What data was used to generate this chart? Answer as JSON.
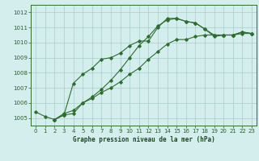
{
  "title": "Graphe pression niveau de la mer (hPa)",
  "background_color": "#d4eeee",
  "grid_color": "#aacccc",
  "line_color": "#2d6e2d",
  "xlim": [
    -0.5,
    23.5
  ],
  "ylim": [
    1004.5,
    1012.5
  ],
  "xticks": [
    0,
    1,
    2,
    3,
    4,
    5,
    6,
    7,
    8,
    9,
    10,
    11,
    12,
    13,
    14,
    15,
    16,
    17,
    18,
    19,
    20,
    21,
    22,
    23
  ],
  "yticks": [
    1005,
    1006,
    1007,
    1008,
    1009,
    1010,
    1011,
    1012
  ],
  "series": [
    {
      "x": [
        0,
        1,
        2,
        3,
        4,
        5,
        6,
        7,
        8,
        9,
        10,
        11,
        12,
        13,
        14,
        15,
        16,
        17,
        18,
        19,
        20,
        21,
        22,
        23
      ],
      "y": [
        1005.4,
        1005.1,
        1004.9,
        1005.2,
        1007.3,
        1007.9,
        1008.3,
        1008.9,
        1009.0,
        1009.3,
        1009.8,
        1010.1,
        1010.1,
        1011.0,
        1011.6,
        1011.6,
        1011.4,
        1011.3,
        1010.9,
        1010.4,
        1010.5,
        1010.5,
        1010.7,
        1010.6
      ]
    },
    {
      "x": [
        2,
        3,
        4,
        5,
        6,
        7,
        8,
        9,
        10,
        11,
        12,
        13,
        14,
        15,
        16,
        17,
        18,
        19,
        20,
        21,
        22,
        23
      ],
      "y": [
        1004.9,
        1005.2,
        1005.3,
        1006.0,
        1006.4,
        1006.9,
        1007.5,
        1008.2,
        1009.0,
        1009.8,
        1010.4,
        1011.1,
        1011.5,
        1011.6,
        1011.4,
        1011.3,
        1010.9,
        1010.5,
        1010.5,
        1010.5,
        1010.7,
        1010.6
      ]
    },
    {
      "x": [
        2,
        3,
        4,
        5,
        6,
        7,
        8,
        9,
        10,
        11,
        12,
        13,
        14,
        15,
        16,
        17,
        18,
        19,
        20,
        21,
        22,
        23
      ],
      "y": [
        1004.9,
        1005.3,
        1005.5,
        1006.0,
        1006.3,
        1006.7,
        1007.0,
        1007.4,
        1007.9,
        1008.3,
        1008.9,
        1009.4,
        1009.9,
        1010.2,
        1010.2,
        1010.4,
        1010.5,
        1010.5,
        1010.5,
        1010.5,
        1010.6,
        1010.6
      ]
    }
  ]
}
